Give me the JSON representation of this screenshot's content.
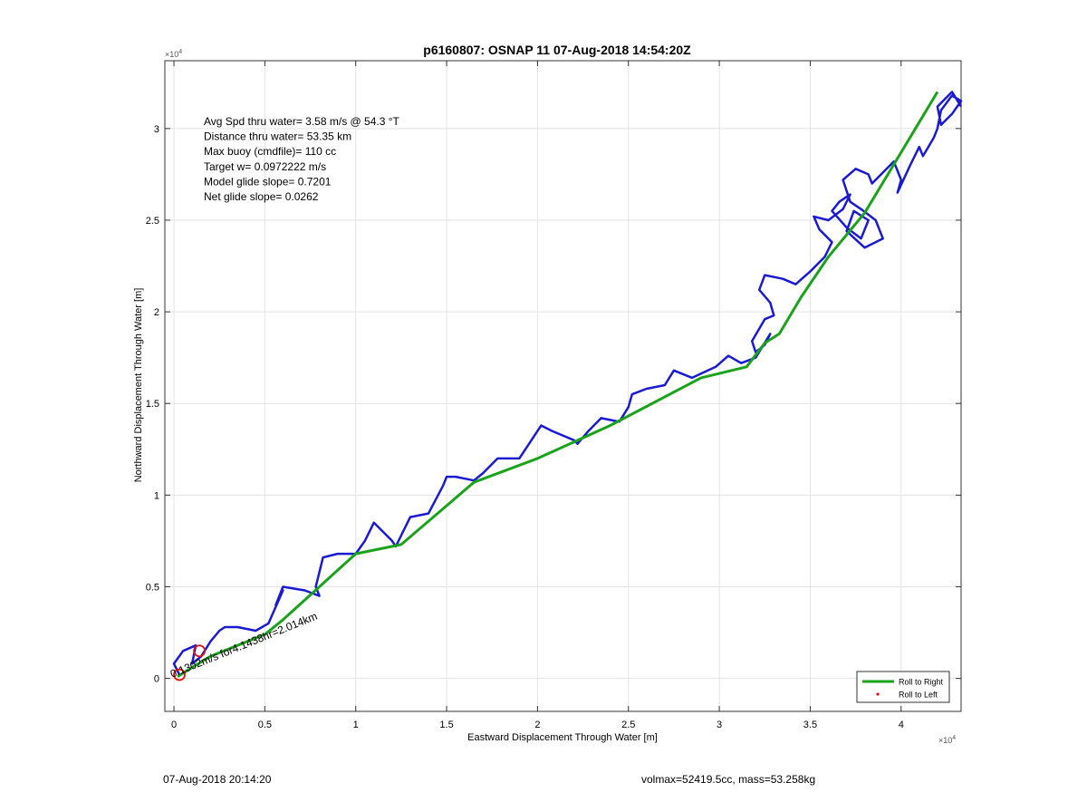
{
  "chart_data": {
    "type": "line",
    "title": "p6160807: OSNAP 11 07-Aug-2018 14:54:20Z",
    "xlabel": "Eastward Displacement Through Water [m]",
    "ylabel": "Northward Displacement Through Water [m]",
    "x_exponent_label": "×10",
    "x_exponent": "4",
    "y_exponent_label": "×10",
    "y_exponent": "4",
    "xlim": [
      -0.05,
      4.33
    ],
    "ylim": [
      -0.18,
      3.37
    ],
    "scale_note": "axis values in units of 1e4 m",
    "grid": true,
    "x_ticks": [
      0,
      0.5,
      1,
      1.5,
      2,
      2.5,
      3,
      3.5,
      4
    ],
    "x_tick_labels": [
      "0",
      "0.5",
      "1",
      "1.5",
      "2",
      "2.5",
      "3",
      "3.5",
      "4"
    ],
    "y_ticks": [
      0,
      0.5,
      1,
      1.5,
      2,
      2.5,
      3
    ],
    "y_tick_labels": [
      "0",
      "0.5",
      "1",
      "1.5",
      "2",
      "2.5",
      "3"
    ],
    "annotations": [
      "Avg Spd thru water=  3.58 m/s @  54.3 °T",
      "Distance thru water= 53.35 km",
      "Max buoy (cmdfile)= 110 cc",
      "Target w= 0.0972222 m/s",
      "Model glide slope= 0.7201",
      "Net glide slope= 0.0262"
    ],
    "segment_label": "0.1302m/s for4.1438hr=2.014km",
    "legend": {
      "placement": "bottom-right",
      "entries": [
        {
          "name": "Roll to Right",
          "color": "#1aa31a",
          "marker": "line"
        },
        {
          "name": "Roll to Left",
          "color": "#e01010",
          "marker": "dot"
        }
      ]
    },
    "series": [
      {
        "name": "Roll to Right",
        "color": "#1aa31a",
        "x": [
          0.02,
          0.1,
          0.2,
          0.35,
          0.5,
          0.6,
          0.8,
          1.0,
          1.25,
          1.45,
          1.65,
          2.0,
          2.4,
          2.9,
          3.15,
          3.25,
          3.33,
          3.45,
          3.6,
          3.8,
          4.0,
          4.2
        ],
        "y": [
          0.01,
          0.06,
          0.12,
          0.18,
          0.24,
          0.32,
          0.5,
          0.68,
          0.73,
          0.9,
          1.07,
          1.2,
          1.38,
          1.64,
          1.7,
          1.83,
          1.88,
          2.08,
          2.3,
          2.54,
          2.87,
          3.2
        ]
      },
      {
        "name": "track",
        "color": "#1a1ad0",
        "x": [
          0.03,
          0.0,
          0.05,
          0.12,
          0.1,
          0.15,
          0.2,
          0.25,
          0.28,
          0.35,
          0.45,
          0.52,
          0.6,
          0.56,
          0.6,
          0.72,
          0.8,
          0.78,
          0.82,
          0.9,
          1.0,
          1.05,
          1.1,
          1.15,
          1.2,
          1.22,
          1.26,
          1.3,
          1.4,
          1.48,
          1.5,
          1.55,
          1.65,
          1.7,
          1.78,
          1.9,
          2.0,
          2.02,
          2.08,
          2.2,
          2.22,
          2.28,
          2.35,
          2.45,
          2.5,
          2.52,
          2.6,
          2.7,
          2.75,
          2.85,
          2.98,
          3.05,
          3.12,
          3.2,
          3.28,
          3.25,
          3.2,
          3.18,
          3.25,
          3.3,
          3.28,
          3.22,
          3.25,
          3.35,
          3.42,
          3.5,
          3.58,
          3.62,
          3.55,
          3.52,
          3.6,
          3.68,
          3.72,
          3.66,
          3.62,
          3.7,
          3.78,
          3.82,
          3.74,
          3.7,
          3.8,
          3.9,
          3.86,
          3.78,
          3.72,
          3.68,
          3.75,
          3.82,
          3.84,
          3.9,
          3.96,
          4.0,
          3.98,
          4.05,
          4.1,
          4.12,
          4.18,
          4.2,
          4.22,
          4.28,
          4.33,
          4.28,
          4.22,
          4.2,
          4.28,
          4.33
        ],
        "y": [
          0.02,
          0.08,
          0.15,
          0.18,
          0.08,
          0.12,
          0.2,
          0.26,
          0.28,
          0.28,
          0.26,
          0.3,
          0.48,
          0.4,
          0.5,
          0.48,
          0.45,
          0.5,
          0.66,
          0.68,
          0.68,
          0.75,
          0.85,
          0.8,
          0.75,
          0.72,
          0.8,
          0.88,
          0.9,
          1.05,
          1.1,
          1.1,
          1.08,
          1.12,
          1.2,
          1.2,
          1.35,
          1.38,
          1.35,
          1.3,
          1.28,
          1.35,
          1.42,
          1.4,
          1.48,
          1.55,
          1.58,
          1.6,
          1.68,
          1.64,
          1.7,
          1.76,
          1.72,
          1.75,
          1.88,
          1.82,
          1.78,
          1.84,
          1.96,
          1.98,
          2.05,
          2.12,
          2.2,
          2.18,
          2.15,
          2.22,
          2.3,
          2.38,
          2.45,
          2.52,
          2.5,
          2.56,
          2.64,
          2.6,
          2.55,
          2.46,
          2.4,
          2.5,
          2.55,
          2.44,
          2.35,
          2.4,
          2.5,
          2.56,
          2.6,
          2.72,
          2.78,
          2.75,
          2.7,
          2.76,
          2.82,
          2.72,
          2.65,
          2.8,
          2.9,
          2.85,
          2.95,
          3.0,
          3.1,
          3.18,
          3.15,
          3.08,
          3.02,
          3.12,
          3.2,
          3.12
        ]
      }
    ],
    "markers": [
      {
        "type": "circle",
        "color": "#e01010",
        "x": 0.14,
        "y": 0.15
      },
      {
        "type": "circle",
        "color": "#e01010",
        "x": 0.03,
        "y": 0.02
      }
    ]
  },
  "footer": {
    "timestamp": "07-Aug-2018 20:14:20",
    "stats": "volmax=52419.5cc, mass=53.258kg"
  }
}
